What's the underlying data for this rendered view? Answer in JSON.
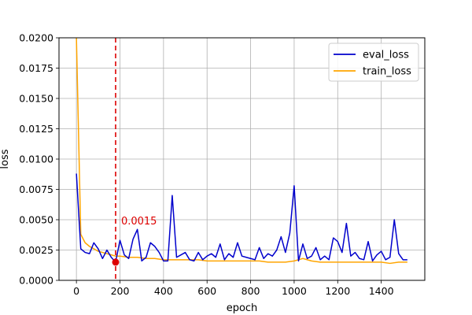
{
  "chart_data": {
    "type": "line",
    "title": "",
    "xlabel": "epoch",
    "ylabel": "loss",
    "xlim": [
      -80,
      1600
    ],
    "ylim": [
      0,
      0.02
    ],
    "x_ticks": [
      0,
      200,
      400,
      600,
      800,
      1000,
      1200,
      1400
    ],
    "x_tick_labels": [
      "0",
      "200",
      "400",
      "600",
      "800",
      "1000",
      "1200",
      "1400"
    ],
    "y_ticks": [
      0,
      0.0025,
      0.005,
      0.0075,
      0.01,
      0.0125,
      0.015,
      0.0175,
      0.02
    ],
    "y_tick_labels": [
      "0.0000",
      "0.0025",
      "0.0050",
      "0.0075",
      "0.0100",
      "0.0125",
      "0.0150",
      "0.0175",
      "0.0200"
    ],
    "grid": true,
    "legend_position": "top-right",
    "series": [
      {
        "name": "eval_loss",
        "color": "#0000cc",
        "x": [
          0,
          20,
          40,
          60,
          80,
          100,
          120,
          140,
          160,
          180,
          200,
          220,
          240,
          260,
          280,
          300,
          320,
          340,
          360,
          380,
          400,
          420,
          440,
          460,
          480,
          500,
          520,
          540,
          560,
          580,
          600,
          620,
          640,
          660,
          680,
          700,
          720,
          740,
          760,
          780,
          800,
          820,
          840,
          860,
          880,
          900,
          920,
          940,
          960,
          980,
          1000,
          1020,
          1040,
          1060,
          1080,
          1100,
          1120,
          1140,
          1160,
          1180,
          1200,
          1220,
          1240,
          1260,
          1280,
          1300,
          1320,
          1340,
          1360,
          1380,
          1400,
          1420,
          1440,
          1460,
          1480,
          1500,
          1520
        ],
        "y": [
          0.0088,
          0.0026,
          0.0023,
          0.0022,
          0.0031,
          0.0026,
          0.0018,
          0.0025,
          0.0019,
          0.0015,
          0.0033,
          0.0021,
          0.0018,
          0.0034,
          0.0042,
          0.0016,
          0.0019,
          0.0031,
          0.0028,
          0.0023,
          0.0016,
          0.0016,
          0.007,
          0.0019,
          0.0021,
          0.0023,
          0.0017,
          0.0016,
          0.0023,
          0.0017,
          0.002,
          0.0022,
          0.0019,
          0.003,
          0.0017,
          0.0022,
          0.0019,
          0.0031,
          0.002,
          0.0019,
          0.0018,
          0.0017,
          0.0027,
          0.0018,
          0.0022,
          0.002,
          0.0025,
          0.0036,
          0.0023,
          0.0039,
          0.0078,
          0.0016,
          0.003,
          0.0018,
          0.002,
          0.0027,
          0.0017,
          0.002,
          0.0017,
          0.0035,
          0.0032,
          0.0023,
          0.0047,
          0.002,
          0.0023,
          0.0018,
          0.0017,
          0.0032,
          0.0016,
          0.0021,
          0.0024,
          0.0017,
          0.0019,
          0.005,
          0.0022,
          0.0017,
          0.0017
        ]
      },
      {
        "name": "train_loss",
        "color": "#ffa500",
        "x": [
          0,
          20,
          40,
          60,
          80,
          100,
          120,
          140,
          160,
          180,
          200,
          240,
          280,
          320,
          360,
          400,
          440,
          480,
          520,
          560,
          600,
          640,
          680,
          720,
          760,
          800,
          840,
          880,
          920,
          960,
          1000,
          1040,
          1080,
          1120,
          1160,
          1200,
          1240,
          1280,
          1320,
          1360,
          1400,
          1440,
          1480,
          1520
        ],
        "y": [
          0.02,
          0.0038,
          0.0031,
          0.0028,
          0.0026,
          0.0024,
          0.0023,
          0.0022,
          0.0021,
          0.002,
          0.002,
          0.0019,
          0.0019,
          0.0018,
          0.0018,
          0.0017,
          0.0017,
          0.0017,
          0.0017,
          0.0017,
          0.0016,
          0.0016,
          0.0016,
          0.0016,
          0.0016,
          0.0016,
          0.0016,
          0.0015,
          0.0015,
          0.0015,
          0.0016,
          0.0018,
          0.0016,
          0.0015,
          0.0015,
          0.0015,
          0.0015,
          0.0015,
          0.0015,
          0.0015,
          0.0015,
          0.0014,
          0.0015,
          0.0015
        ]
      }
    ],
    "annotations": [
      {
        "type": "vline",
        "x": 180,
        "color": "#dd0000",
        "style": "dashed"
      },
      {
        "type": "point",
        "x": 180,
        "y": 0.0015,
        "color": "#dd0000",
        "label": "0.0015"
      }
    ]
  }
}
